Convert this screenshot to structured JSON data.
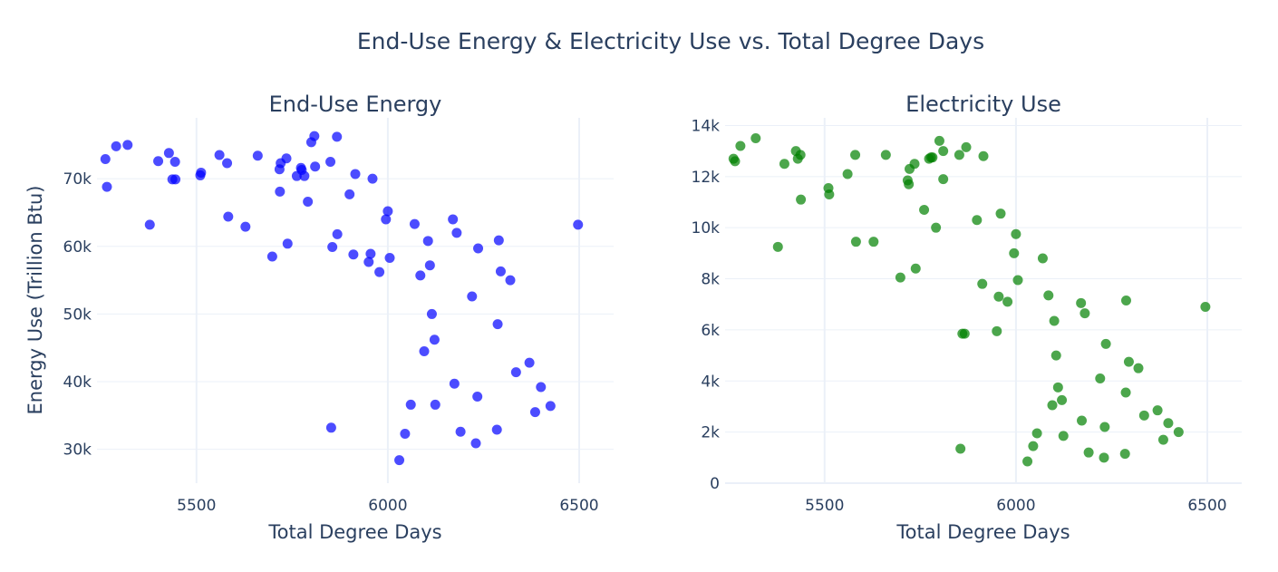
{
  "figure_title": "End-Use Energy & Electricity Use vs. Total Degree Days",
  "chart_data": [
    {
      "type": "scatter",
      "title": "End-Use Energy",
      "xlabel": "Total Degree Days",
      "ylabel": "Energy Use (Trillion Btu)",
      "xlim": [
        5240,
        6590
      ],
      "ylim": [
        25000,
        79000
      ],
      "xticks": [
        5500,
        6000,
        6500
      ],
      "xtick_labels": [
        "5500",
        "6000",
        "6500"
      ],
      "yticks": [
        30000,
        40000,
        50000,
        60000,
        70000
      ],
      "ytick_labels": [
        "30k",
        "40k",
        "50k",
        "60k",
        "70k"
      ],
      "grid": true,
      "color": "#0000ff",
      "series": [
        {
          "points": [
            [
              5262,
              72900
            ],
            [
              5266,
              68800
            ],
            [
              5290,
              74800
            ],
            [
              5320,
              75000
            ],
            [
              5378,
              63200
            ],
            [
              5400,
              72600
            ],
            [
              5428,
              73800
            ],
            [
              5437,
              69900
            ],
            [
              5444,
              72500
            ],
            [
              5445,
              69900
            ],
            [
              5510,
              70500
            ],
            [
              5512,
              70900
            ],
            [
              5560,
              73500
            ],
            [
              5580,
              72300
            ],
            [
              5583,
              64400
            ],
            [
              5628,
              62900
            ],
            [
              5660,
              73400
            ],
            [
              5698,
              58500
            ],
            [
              5717,
              71400
            ],
            [
              5718,
              68100
            ],
            [
              5720,
              72300
            ],
            [
              5735,
              73000
            ],
            [
              5738,
              60400
            ],
            [
              5762,
              70400
            ],
            [
              5773,
              71600
            ],
            [
              5775,
              71300
            ],
            [
              5782,
              70400
            ],
            [
              5791,
              66600
            ],
            [
              5800,
              75400
            ],
            [
              5808,
              76300
            ],
            [
              5810,
              71800
            ],
            [
              5850,
              72500
            ],
            [
              5852,
              33200
            ],
            [
              5855,
              59900
            ],
            [
              5867,
              76200
            ],
            [
              5868,
              61800
            ],
            [
              5900,
              67700
            ],
            [
              5910,
              58800
            ],
            [
              5915,
              70700
            ],
            [
              5950,
              57700
            ],
            [
              5955,
              58900
            ],
            [
              5960,
              70000
            ],
            [
              5978,
              56200
            ],
            [
              5995,
              64000
            ],
            [
              6000,
              65200
            ],
            [
              6005,
              58300
            ],
            [
              6030,
              28400
            ],
            [
              6045,
              32300
            ],
            [
              6060,
              36600
            ],
            [
              6070,
              63300
            ],
            [
              6085,
              55700
            ],
            [
              6095,
              44500
            ],
            [
              6105,
              60800
            ],
            [
              6110,
              57200
            ],
            [
              6115,
              50000
            ],
            [
              6122,
              46200
            ],
            [
              6124,
              36600
            ],
            [
              6170,
              64000
            ],
            [
              6174,
              39700
            ],
            [
              6180,
              62000
            ],
            [
              6190,
              32600
            ],
            [
              6220,
              52600
            ],
            [
              6230,
              30900
            ],
            [
              6234,
              37800
            ],
            [
              6236,
              59700
            ],
            [
              6285,
              32900
            ],
            [
              6287,
              48500
            ],
            [
              6290,
              60900
            ],
            [
              6295,
              56300
            ],
            [
              6320,
              55000
            ],
            [
              6335,
              41400
            ],
            [
              6370,
              42800
            ],
            [
              6385,
              35500
            ],
            [
              6400,
              39200
            ],
            [
              6425,
              36400
            ],
            [
              6497,
              63200
            ]
          ]
        }
      ]
    },
    {
      "type": "scatter",
      "title": "Electricity Use",
      "xlabel": "Total Degree Days",
      "ylabel": "",
      "xlim": [
        5240,
        6590
      ],
      "ylim": [
        0,
        14300
      ],
      "xticks": [
        5500,
        6000,
        6500
      ],
      "xtick_labels": [
        "5500",
        "6000",
        "6500"
      ],
      "yticks": [
        0,
        2000,
        4000,
        6000,
        8000,
        10000,
        12000,
        14000
      ],
      "ytick_labels": [
        "0",
        "2k",
        "4k",
        "6k",
        "8k",
        "10k",
        "12k",
        "14k"
      ],
      "grid": true,
      "color": "#008000",
      "series": [
        {
          "points": [
            [
              5262,
              12700
            ],
            [
              5266,
              12600
            ],
            [
              5280,
              13200
            ],
            [
              5320,
              13500
            ],
            [
              5378,
              9250
            ],
            [
              5395,
              12500
            ],
            [
              5425,
              13000
            ],
            [
              5430,
              12700
            ],
            [
              5437,
              12850
            ],
            [
              5438,
              11100
            ],
            [
              5510,
              11550
            ],
            [
              5512,
              11300
            ],
            [
              5560,
              12100
            ],
            [
              5580,
              12850
            ],
            [
              5582,
              9450
            ],
            [
              5628,
              9450
            ],
            [
              5660,
              12850
            ],
            [
              5698,
              8050
            ],
            [
              5717,
              11850
            ],
            [
              5720,
              11700
            ],
            [
              5722,
              12300
            ],
            [
              5735,
              12500
            ],
            [
              5738,
              8400
            ],
            [
              5760,
              10700
            ],
            [
              5773,
              12700
            ],
            [
              5778,
              12750
            ],
            [
              5782,
              12750
            ],
            [
              5791,
              10000
            ],
            [
              5800,
              13400
            ],
            [
              5810,
              13000
            ],
            [
              5810,
              11900
            ],
            [
              5852,
              12850
            ],
            [
              5855,
              1350
            ],
            [
              5860,
              5850
            ],
            [
              5866,
              5850
            ],
            [
              5870,
              13150
            ],
            [
              5898,
              10300
            ],
            [
              5912,
              7800
            ],
            [
              5915,
              12800
            ],
            [
              5950,
              5950
            ],
            [
              5955,
              7300
            ],
            [
              5960,
              10550
            ],
            [
              5978,
              7100
            ],
            [
              5995,
              9000
            ],
            [
              6000,
              9750
            ],
            [
              6005,
              7950
            ],
            [
              6030,
              850
            ],
            [
              6045,
              1450
            ],
            [
              6055,
              1950
            ],
            [
              6070,
              8800
            ],
            [
              6085,
              7350
            ],
            [
              6095,
              3050
            ],
            [
              6100,
              6350
            ],
            [
              6105,
              5000
            ],
            [
              6110,
              3750
            ],
            [
              6120,
              3250
            ],
            [
              6124,
              1850
            ],
            [
              6170,
              7050
            ],
            [
              6172,
              2450
            ],
            [
              6180,
              6650
            ],
            [
              6190,
              1200
            ],
            [
              6220,
              4100
            ],
            [
              6230,
              1000
            ],
            [
              6232,
              2200
            ],
            [
              6235,
              5450
            ],
            [
              6285,
              1150
            ],
            [
              6287,
              3550
            ],
            [
              6288,
              7150
            ],
            [
              6295,
              4750
            ],
            [
              6320,
              4500
            ],
            [
              6335,
              2650
            ],
            [
              6370,
              2850
            ],
            [
              6385,
              1700
            ],
            [
              6398,
              2350
            ],
            [
              6425,
              2000
            ],
            [
              6495,
              6900
            ]
          ]
        }
      ]
    }
  ]
}
